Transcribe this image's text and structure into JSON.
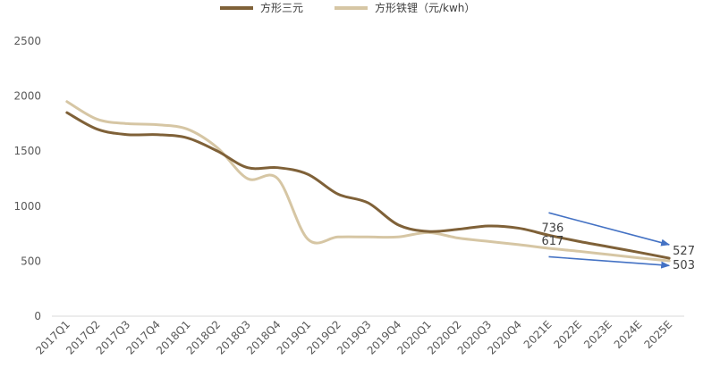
{
  "chart_data": {
    "type": "line",
    "categories": [
      "2017Q1",
      "2017Q2",
      "2017Q3",
      "2017Q4",
      "2018Q1",
      "2018Q2",
      "2018Q3",
      "2018Q4",
      "2019Q1",
      "2019Q2",
      "2019Q3",
      "2019Q4",
      "2020Q1",
      "2020Q2",
      "2020Q3",
      "2020Q4",
      "2021E",
      "2022E",
      "2023E",
      "2024E",
      "2025E"
    ],
    "series": [
      {
        "name": "方形三元",
        "color": "#7f6138",
        "values": [
          1850,
          1700,
          1650,
          1650,
          1620,
          1500,
          1350,
          1350,
          1290,
          1110,
          1030,
          830,
          770,
          790,
          820,
          800,
          736,
          680,
          630,
          580,
          527
        ]
      },
      {
        "name": "方形铁锂（元/kwh）",
        "color": "#d6c6a4",
        "values": [
          1950,
          1790,
          1750,
          1740,
          1700,
          1530,
          1250,
          1250,
          700,
          720,
          720,
          720,
          760,
          710,
          680,
          650,
          617,
          590,
          560,
          530,
          503
        ]
      }
    ],
    "ylim": [
      0,
      2500
    ],
    "yticks": [
      "0",
      "500",
      "1000",
      "1500",
      "2000",
      "2500"
    ],
    "annotations": [
      {
        "text": "736",
        "series": 0,
        "index": 16
      },
      {
        "text": "617",
        "series": 1,
        "index": 16
      },
      {
        "text": "527",
        "series": 0,
        "index": 20
      },
      {
        "text": "503",
        "series": 1,
        "index": 20
      }
    ],
    "arrows": [
      {
        "from": [
          16,
          940
        ],
        "to": [
          20,
          650
        ]
      },
      {
        "from": [
          16,
          540
        ],
        "to": [
          20,
          460
        ]
      }
    ],
    "arrow_color": "#4472c4",
    "legend_position": "top-center",
    "grid": false
  }
}
